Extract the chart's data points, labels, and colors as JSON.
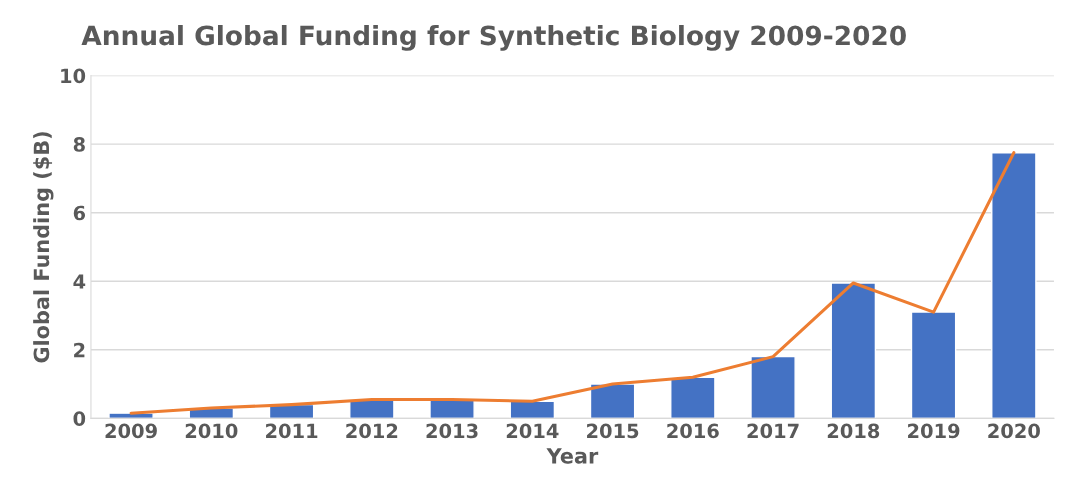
{
  "chart_data": {
    "type": "bar",
    "title": "Annual Global Funding for Synthetic Biology 2009-2020",
    "xlabel": "Year",
    "ylabel": "Global Funding ($B)",
    "categories": [
      "2009",
      "2010",
      "2011",
      "2012",
      "2013",
      "2014",
      "2015",
      "2016",
      "2017",
      "2018",
      "2019",
      "2020"
    ],
    "series": [
      {
        "color": "#4472c4",
        "values": [
          0.15,
          0.3,
          0.4,
          0.55,
          0.55,
          0.5,
          1.0,
          1.2,
          1.8,
          3.95,
          3.1,
          7.75
        ]
      },
      {
        "type": "line",
        "color": "#ed7d31",
        "values": [
          0.15,
          0.3,
          0.4,
          0.55,
          0.55,
          0.5,
          1.0,
          1.2,
          1.8,
          3.95,
          3.1,
          7.75
        ]
      }
    ],
    "ylim": [
      0,
      10
    ],
    "yticks": [
      0,
      2,
      4,
      6,
      8,
      10
    ],
    "grid": "y",
    "marker": "none",
    "line_style": "solid"
  }
}
